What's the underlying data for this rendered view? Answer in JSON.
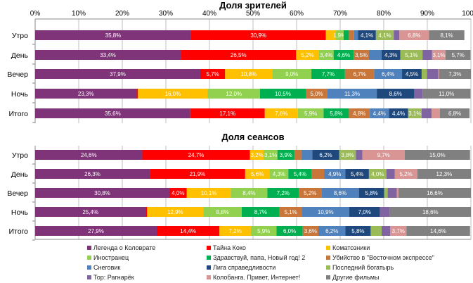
{
  "chart_data": [
    {
      "type": "bar",
      "stacked": true,
      "orientation": "horizontal",
      "title": "Доля зрителей",
      "xlim": [
        0,
        100
      ],
      "ticks": [
        "0%",
        "10%",
        "20%",
        "30%",
        "40%",
        "50%",
        "60%",
        "70%",
        "80%",
        "90%",
        "100%"
      ],
      "categories": [
        "Утро",
        "День",
        "Вечер",
        "Ночь",
        "Итого"
      ],
      "rows": [
        {
          "values": [
            35.8,
            30.9,
            2.2,
            1.9,
            1.2,
            1.2,
            0.9,
            4.1,
            4.1,
            1.3,
            6.8,
            8.1
          ],
          "labels": [
            "35,8%",
            "30,9%",
            "",
            "1,9%",
            "",
            "",
            "",
            "4,1%",
            "4,1%",
            "",
            "6,8%",
            "8,1%"
          ]
        },
        {
          "values": [
            33.4,
            26.5,
            5.2,
            3.4,
            4.6,
            3.5,
            2.9,
            4.3,
            5.1,
            2.2,
            3.1,
            5.7
          ],
          "labels": [
            "33,4%",
            "26,5%",
            "5,2%",
            "3,4%",
            "4,6%",
            "3,5%",
            "",
            "4,3%",
            "5,1%",
            "",
            "3,1%",
            "5,7%"
          ]
        },
        {
          "values": [
            37.9,
            5.7,
            10.8,
            9.0,
            7.7,
            6.7,
            6.4,
            4.5,
            1.2,
            2.6,
            0.2,
            7.3
          ],
          "labels": [
            "37,9%",
            "5,7%",
            "10,8%",
            "9,0%",
            "7,7%",
            "6,7%",
            "6,4%",
            "4,5%",
            "",
            "",
            "",
            "7,3%"
          ]
        },
        {
          "values": [
            23.3,
            0.3,
            16.0,
            12.0,
            10.5,
            5.0,
            11.3,
            8.6,
            0,
            1.9,
            0,
            11.0
          ],
          "labels": [
            "23,3%",
            "",
            "16,0%",
            "12,0%",
            "10,5%",
            "5,0%",
            "11,3%",
            "8,6%",
            "",
            "",
            "",
            "11,0%"
          ]
        },
        {
          "values": [
            35.6,
            17.1,
            7.6,
            5.9,
            5.8,
            4.8,
            4.4,
            4.4,
            3.1,
            2.3,
            1.9,
            6.8
          ],
          "labels": [
            "35,6%",
            "17,1%",
            "7,6%",
            "5,9%",
            "5,8%",
            "4,8%",
            "4,4%",
            "4,4%",
            "3,1%",
            "",
            "",
            "6,8%"
          ]
        }
      ]
    },
    {
      "type": "bar",
      "stacked": true,
      "orientation": "horizontal",
      "title": "Доля сеансов",
      "xlim": [
        0,
        100
      ],
      "categories": [
        "Утро",
        "День",
        "Вечер",
        "Ночь",
        "Итого"
      ],
      "rows": [
        {
          "values": [
            24.6,
            24.7,
            3.2,
            3.1,
            3.9,
            1.6,
            2.5,
            6.2,
            3.8,
            1.5,
            9.7,
            15.0
          ],
          "labels": [
            "24,6%",
            "24,7%",
            "3,2%",
            "3,1%",
            "3,9%",
            "",
            "",
            "6,2%",
            "3,8%",
            "",
            "9,7%",
            "15,0%"
          ]
        },
        {
          "values": [
            26.3,
            21.9,
            5.6,
            4.3,
            5.4,
            2.8,
            4.9,
            5.4,
            4.0,
            1.9,
            5.2,
            12.3
          ],
          "labels": [
            "26,3%",
            "21,9%",
            "5,6%",
            "4,3%",
            "5,4%",
            "",
            "4,9%",
            "5,4%",
            "4,0%",
            "",
            "5,2%",
            "12,3%"
          ]
        },
        {
          "values": [
            30.8,
            4.0,
            10.1,
            8.4,
            7.2,
            5.2,
            8.6,
            5.8,
            0.8,
            2.1,
            0.4,
            16.6
          ],
          "labels": [
            "30,8%",
            "4,0%",
            "10,1%",
            "8,4%",
            "7,2%",
            "5,2%",
            "8,6%",
            "5,8%",
            "",
            "",
            "",
            "16,6%"
          ]
        },
        {
          "values": [
            25.4,
            0.3,
            12.9,
            8.8,
            8.7,
            5.1,
            10.9,
            7.0,
            0,
            2.3,
            0,
            18.6
          ],
          "labels": [
            "25,4%",
            "",
            "12,9%",
            "8,8%",
            "8,7%",
            "5,1%",
            "10,9%",
            "7,0%",
            "",
            "",
            "",
            "18,6%"
          ]
        },
        {
          "values": [
            27.9,
            14.4,
            7.2,
            5.9,
            6.0,
            3.6,
            6.2,
            5.8,
            2.5,
            2.0,
            3.7,
            14.6
          ],
          "labels": [
            "27,9%",
            "14,4%",
            "7,2%",
            "5,9%",
            "6,0%",
            "3,6%",
            "6,2%",
            "5,8%",
            "",
            "",
            "3,7%",
            "14,6%"
          ]
        }
      ]
    }
  ],
  "series": [
    {
      "name": "Легенда о Коловрате",
      "color": "#7F3379"
    },
    {
      "name": "Тайна Коко",
      "color": "#FF0000"
    },
    {
      "name": "Коматозники",
      "color": "#FFC000"
    },
    {
      "name": "Иностранец",
      "color": "#92D050"
    },
    {
      "name": "Здравствуй, папа, Новый год! 2",
      "color": "#00B050"
    },
    {
      "name": "Убийство в \"Восточном экспрессе\"",
      "color": "#C8763A"
    },
    {
      "name": "Снеговик",
      "color": "#4F81BD"
    },
    {
      "name": "Лига справедливости",
      "color": "#1F497D"
    },
    {
      "name": "Последний богатырь",
      "color": "#9BBB59"
    },
    {
      "name": "Тор: Рагнарёк",
      "color": "#8064A2"
    },
    {
      "name": "Колобанга. Привет, Интернет!",
      "color": "#D99594"
    },
    {
      "name": "Другие фильмы",
      "color": "#808080"
    }
  ]
}
